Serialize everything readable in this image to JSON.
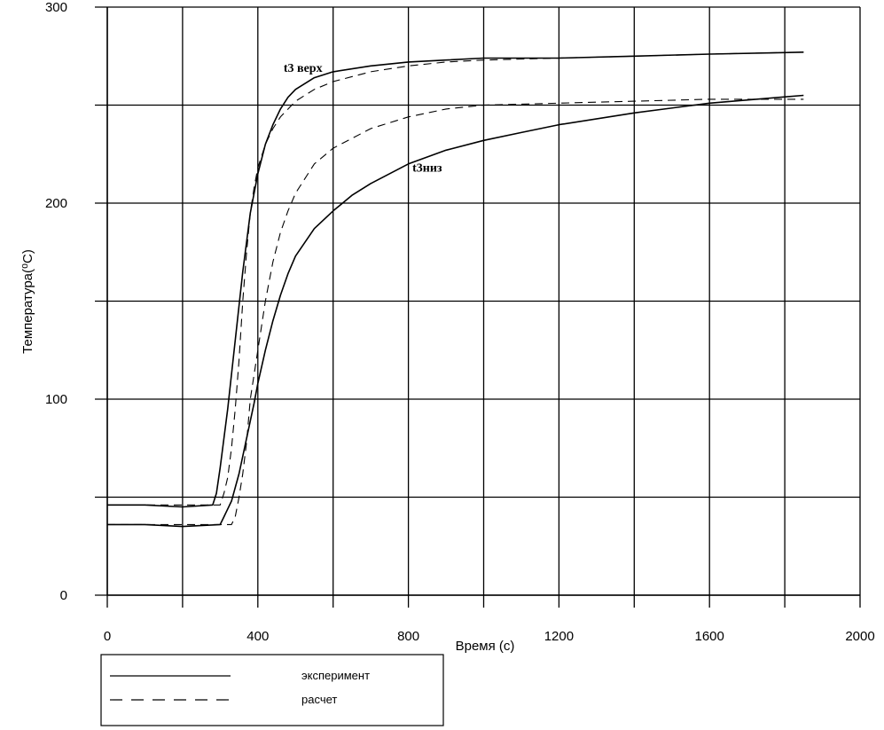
{
  "chart_data": {
    "type": "line",
    "xlabel": "Время (с)",
    "ylabel": "Температура(⁰С)",
    "xlim": [
      0,
      2000
    ],
    "ylim": [
      0,
      300
    ],
    "x_ticks": [
      "0",
      "400",
      "800",
      "1200",
      "1600",
      "2000"
    ],
    "y_ticks": [
      "0",
      "100",
      "200",
      "300"
    ],
    "grid": true,
    "annotations": [
      {
        "text": "t3 верх",
        "x": 520,
        "y": 267
      },
      {
        "text": "t3низ",
        "x": 850,
        "y": 216
      }
    ],
    "legend": {
      "placement": "bottom-left",
      "entries": [
        {
          "label": "эксперимент",
          "style": "solid"
        },
        {
          "label": "расчет",
          "style": "dashed"
        }
      ]
    },
    "series": [
      {
        "style": "solid",
        "curve": "t3 верх",
        "x": [
          0,
          100,
          200,
          280,
          290,
          300,
          320,
          340,
          360,
          380,
          400,
          420,
          440,
          460,
          480,
          500,
          550,
          600,
          700,
          800,
          900,
          1000,
          1200,
          1400,
          1600,
          1850
        ],
        "y": [
          46,
          46,
          45,
          46,
          52,
          65,
          95,
          130,
          165,
          195,
          215,
          230,
          240,
          248,
          254,
          258,
          264,
          267,
          270,
          272,
          273,
          274,
          274,
          275,
          276,
          277
        ]
      },
      {
        "style": "dashed",
        "curve": "t3 верх",
        "x": [
          0,
          300,
          310,
          320,
          330,
          340,
          350,
          360,
          370,
          380,
          390,
          400,
          420,
          440,
          460,
          500,
          550,
          600,
          700,
          800,
          900,
          1000,
          1200,
          1400,
          1600,
          1850
        ],
        "y": [
          46,
          46,
          52,
          60,
          75,
          95,
          120,
          150,
          175,
          195,
          208,
          218,
          230,
          238,
          244,
          252,
          258,
          262,
          267,
          270,
          272,
          273,
          274,
          275,
          276,
          277
        ]
      },
      {
        "style": "solid",
        "curve": "t3низ",
        "x": [
          0,
          100,
          200,
          300,
          310,
          330,
          350,
          370,
          390,
          400,
          420,
          440,
          460,
          480,
          500,
          550,
          600,
          650,
          700,
          800,
          900,
          1000,
          1100,
          1200,
          1400,
          1600,
          1850
        ],
        "y": [
          36,
          36,
          35,
          36,
          40,
          48,
          62,
          80,
          98,
          108,
          125,
          140,
          153,
          164,
          173,
          187,
          196,
          204,
          210,
          220,
          227,
          232,
          236,
          240,
          246,
          251,
          255
        ]
      },
      {
        "style": "dashed",
        "curve": "t3низ",
        "x": [
          0,
          330,
          340,
          350,
          360,
          370,
          380,
          400,
          420,
          440,
          460,
          480,
          500,
          550,
          600,
          700,
          800,
          900,
          1000,
          1200,
          1400,
          1600,
          1850
        ],
        "y": [
          36,
          36,
          40,
          50,
          62,
          78,
          100,
          125,
          150,
          170,
          185,
          196,
          205,
          220,
          228,
          238,
          244,
          248,
          250,
          251,
          252,
          253,
          253
        ]
      }
    ]
  }
}
